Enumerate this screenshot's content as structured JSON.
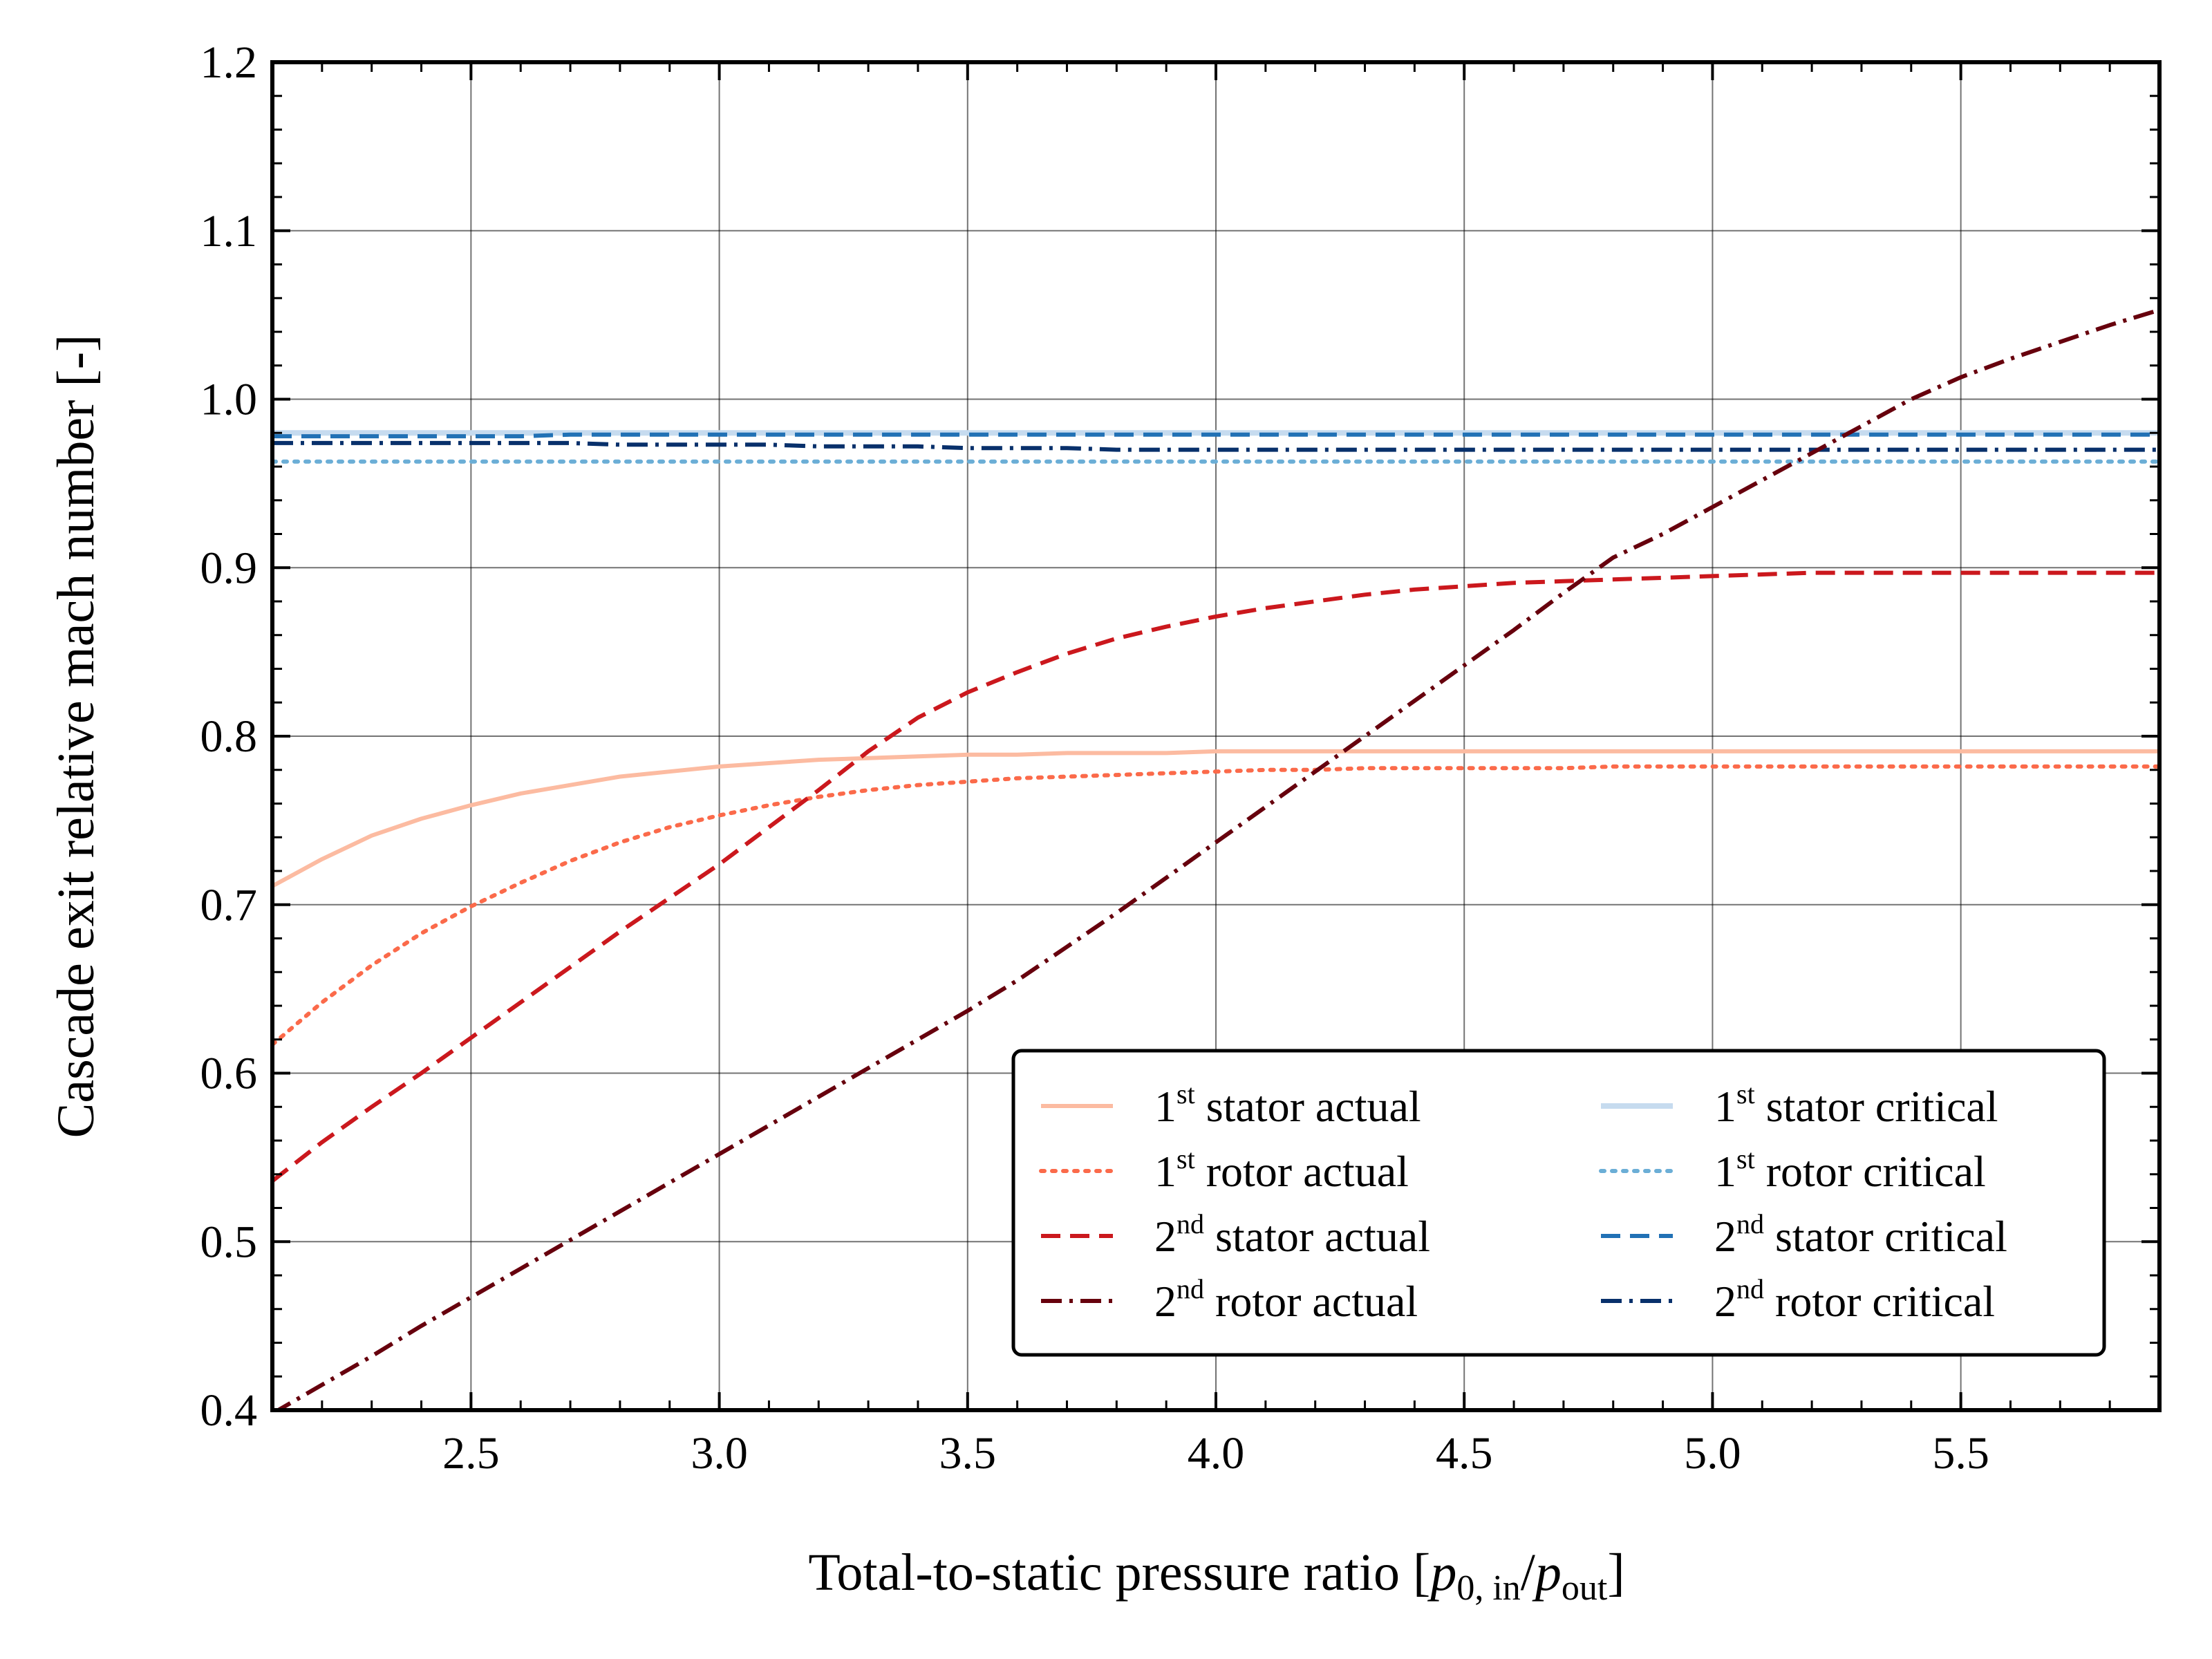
{
  "chart_data": {
    "type": "line",
    "title": "",
    "xlabel": {
      "prefix": "Total-to-static pressure ratio [",
      "num_var": "p",
      "num_sub": "0, in",
      "slash": "/",
      "den_var": "p",
      "den_sub": "out",
      "suffix": "]"
    },
    "ylabel": "Cascade exit relative mach number [-]",
    "xlim": [
      2.1,
      5.9
    ],
    "ylim": [
      0.4,
      1.2
    ],
    "xticks": [
      "2.5",
      "3.0",
      "3.5",
      "4.0",
      "4.5",
      "5.0",
      "5.5"
    ],
    "yticks": [
      "0.4",
      "0.5",
      "0.6",
      "0.7",
      "0.8",
      "0.9",
      "1.0",
      "1.1",
      "1.2"
    ],
    "grid": true,
    "legend_position": "lower-right",
    "x": [
      2.1,
      2.2,
      2.3,
      2.4,
      2.5,
      2.6,
      2.7,
      2.8,
      2.9,
      3.0,
      3.1,
      3.2,
      3.3,
      3.4,
      3.5,
      3.6,
      3.7,
      3.8,
      3.9,
      4.0,
      4.1,
      4.2,
      4.3,
      4.4,
      4.5,
      4.6,
      4.7,
      4.8,
      4.9,
      5.0,
      5.1,
      5.2,
      5.3,
      5.4,
      5.5,
      5.6,
      5.7,
      5.8,
      5.9
    ],
    "series": [
      {
        "name_num": "1",
        "name_sup": "st",
        "name_rest": "stator actual",
        "color": "#fcbba1",
        "dash": "solid",
        "width": 6,
        "values": [
          0.711,
          0.727,
          0.741,
          0.751,
          0.759,
          0.766,
          0.771,
          0.776,
          0.779,
          0.782,
          0.784,
          0.786,
          0.787,
          0.788,
          0.789,
          0.789,
          0.79,
          0.79,
          0.79,
          0.791,
          0.791,
          0.791,
          0.791,
          0.791,
          0.791,
          0.791,
          0.791,
          0.791,
          0.791,
          0.791,
          0.791,
          0.791,
          0.791,
          0.791,
          0.791,
          0.791,
          0.791,
          0.791,
          0.791
        ]
      },
      {
        "name_num": "1",
        "name_sup": "st",
        "name_rest": "rotor actual",
        "color": "#fb6a4a",
        "dash": "dotted",
        "width": 6,
        "values": [
          0.617,
          0.642,
          0.664,
          0.683,
          0.699,
          0.713,
          0.726,
          0.737,
          0.746,
          0.753,
          0.759,
          0.764,
          0.768,
          0.771,
          0.773,
          0.775,
          0.776,
          0.777,
          0.778,
          0.779,
          0.78,
          0.78,
          0.781,
          0.781,
          0.781,
          0.781,
          0.781,
          0.782,
          0.782,
          0.782,
          0.782,
          0.782,
          0.782,
          0.782,
          0.782,
          0.782,
          0.782,
          0.782,
          0.782
        ]
      },
      {
        "name_num": "2",
        "name_sup": "nd",
        "name_rest": "stator actual",
        "color": "#cb181d",
        "dash": "dashed",
        "width": 6,
        "values": [
          0.536,
          0.559,
          0.58,
          0.6,
          0.621,
          0.642,
          0.663,
          0.684,
          0.704,
          0.724,
          0.746,
          0.768,
          0.791,
          0.811,
          0.826,
          0.838,
          0.849,
          0.858,
          0.865,
          0.871,
          0.876,
          0.88,
          0.884,
          0.887,
          0.889,
          0.891,
          0.892,
          0.893,
          0.894,
          0.895,
          0.896,
          0.897,
          0.897,
          0.897,
          0.897,
          0.897,
          0.897,
          0.897,
          0.897
        ]
      },
      {
        "name_num": "2",
        "name_sup": "nd",
        "name_rest": "rotor actual",
        "color": "#67000d",
        "dash": "dashdot",
        "width": 6,
        "values": [
          0.398,
          0.415,
          0.432,
          0.45,
          0.467,
          0.484,
          0.501,
          0.518,
          0.535,
          0.552,
          0.569,
          0.586,
          0.603,
          0.62,
          0.637,
          0.655,
          0.675,
          0.695,
          0.716,
          0.737,
          0.758,
          0.779,
          0.8,
          0.821,
          0.842,
          0.863,
          0.885,
          0.906,
          0.92,
          0.936,
          0.952,
          0.968,
          0.984,
          1.0,
          1.013,
          1.024,
          1.034,
          1.044,
          1.053
        ]
      },
      {
        "name_num": "1",
        "name_sup": "st",
        "name_rest": "stator critical",
        "color": "#c6dbef",
        "dash": "solid",
        "width": 8,
        "values": [
          0.98,
          0.98,
          0.98,
          0.98,
          0.98,
          0.98,
          0.98,
          0.98,
          0.98,
          0.98,
          0.98,
          0.98,
          0.98,
          0.98,
          0.98,
          0.98,
          0.98,
          0.98,
          0.98,
          0.98,
          0.98,
          0.98,
          0.98,
          0.98,
          0.98,
          0.98,
          0.98,
          0.98,
          0.98,
          0.98,
          0.98,
          0.98,
          0.98,
          0.98,
          0.98,
          0.98,
          0.98,
          0.98,
          0.98
        ]
      },
      {
        "name_num": "1",
        "name_sup": "st",
        "name_rest": "rotor critical",
        "color": "#6baed6",
        "dash": "dotted",
        "width": 6,
        "values": [
          0.963,
          0.963,
          0.963,
          0.963,
          0.963,
          0.963,
          0.963,
          0.963,
          0.963,
          0.963,
          0.963,
          0.963,
          0.963,
          0.963,
          0.963,
          0.963,
          0.963,
          0.963,
          0.963,
          0.963,
          0.963,
          0.963,
          0.963,
          0.963,
          0.963,
          0.963,
          0.963,
          0.963,
          0.963,
          0.963,
          0.963,
          0.963,
          0.963,
          0.963,
          0.963,
          0.963,
          0.963,
          0.963,
          0.963
        ]
      },
      {
        "name_num": "2",
        "name_sup": "nd",
        "name_rest": "stator critical",
        "color": "#2171b5",
        "dash": "dashed",
        "width": 6,
        "values": [
          0.978,
          0.978,
          0.978,
          0.978,
          0.978,
          0.978,
          0.979,
          0.979,
          0.979,
          0.979,
          0.979,
          0.979,
          0.979,
          0.979,
          0.979,
          0.979,
          0.979,
          0.979,
          0.979,
          0.979,
          0.979,
          0.979,
          0.979,
          0.979,
          0.979,
          0.979,
          0.979,
          0.979,
          0.979,
          0.979,
          0.979,
          0.979,
          0.979,
          0.979,
          0.979,
          0.979,
          0.979,
          0.979,
          0.979
        ]
      },
      {
        "name_num": "2",
        "name_sup": "nd",
        "name_rest": "rotor critical",
        "color": "#08306b",
        "dash": "dashdot",
        "width": 6,
        "values": [
          0.974,
          0.974,
          0.974,
          0.974,
          0.974,
          0.974,
          0.974,
          0.973,
          0.973,
          0.973,
          0.973,
          0.972,
          0.972,
          0.972,
          0.971,
          0.971,
          0.971,
          0.97,
          0.97,
          0.97,
          0.97,
          0.97,
          0.97,
          0.97,
          0.97,
          0.97,
          0.97,
          0.97,
          0.97,
          0.97,
          0.97,
          0.97,
          0.97,
          0.97,
          0.97,
          0.97,
          0.97,
          0.97,
          0.97
        ]
      }
    ]
  }
}
